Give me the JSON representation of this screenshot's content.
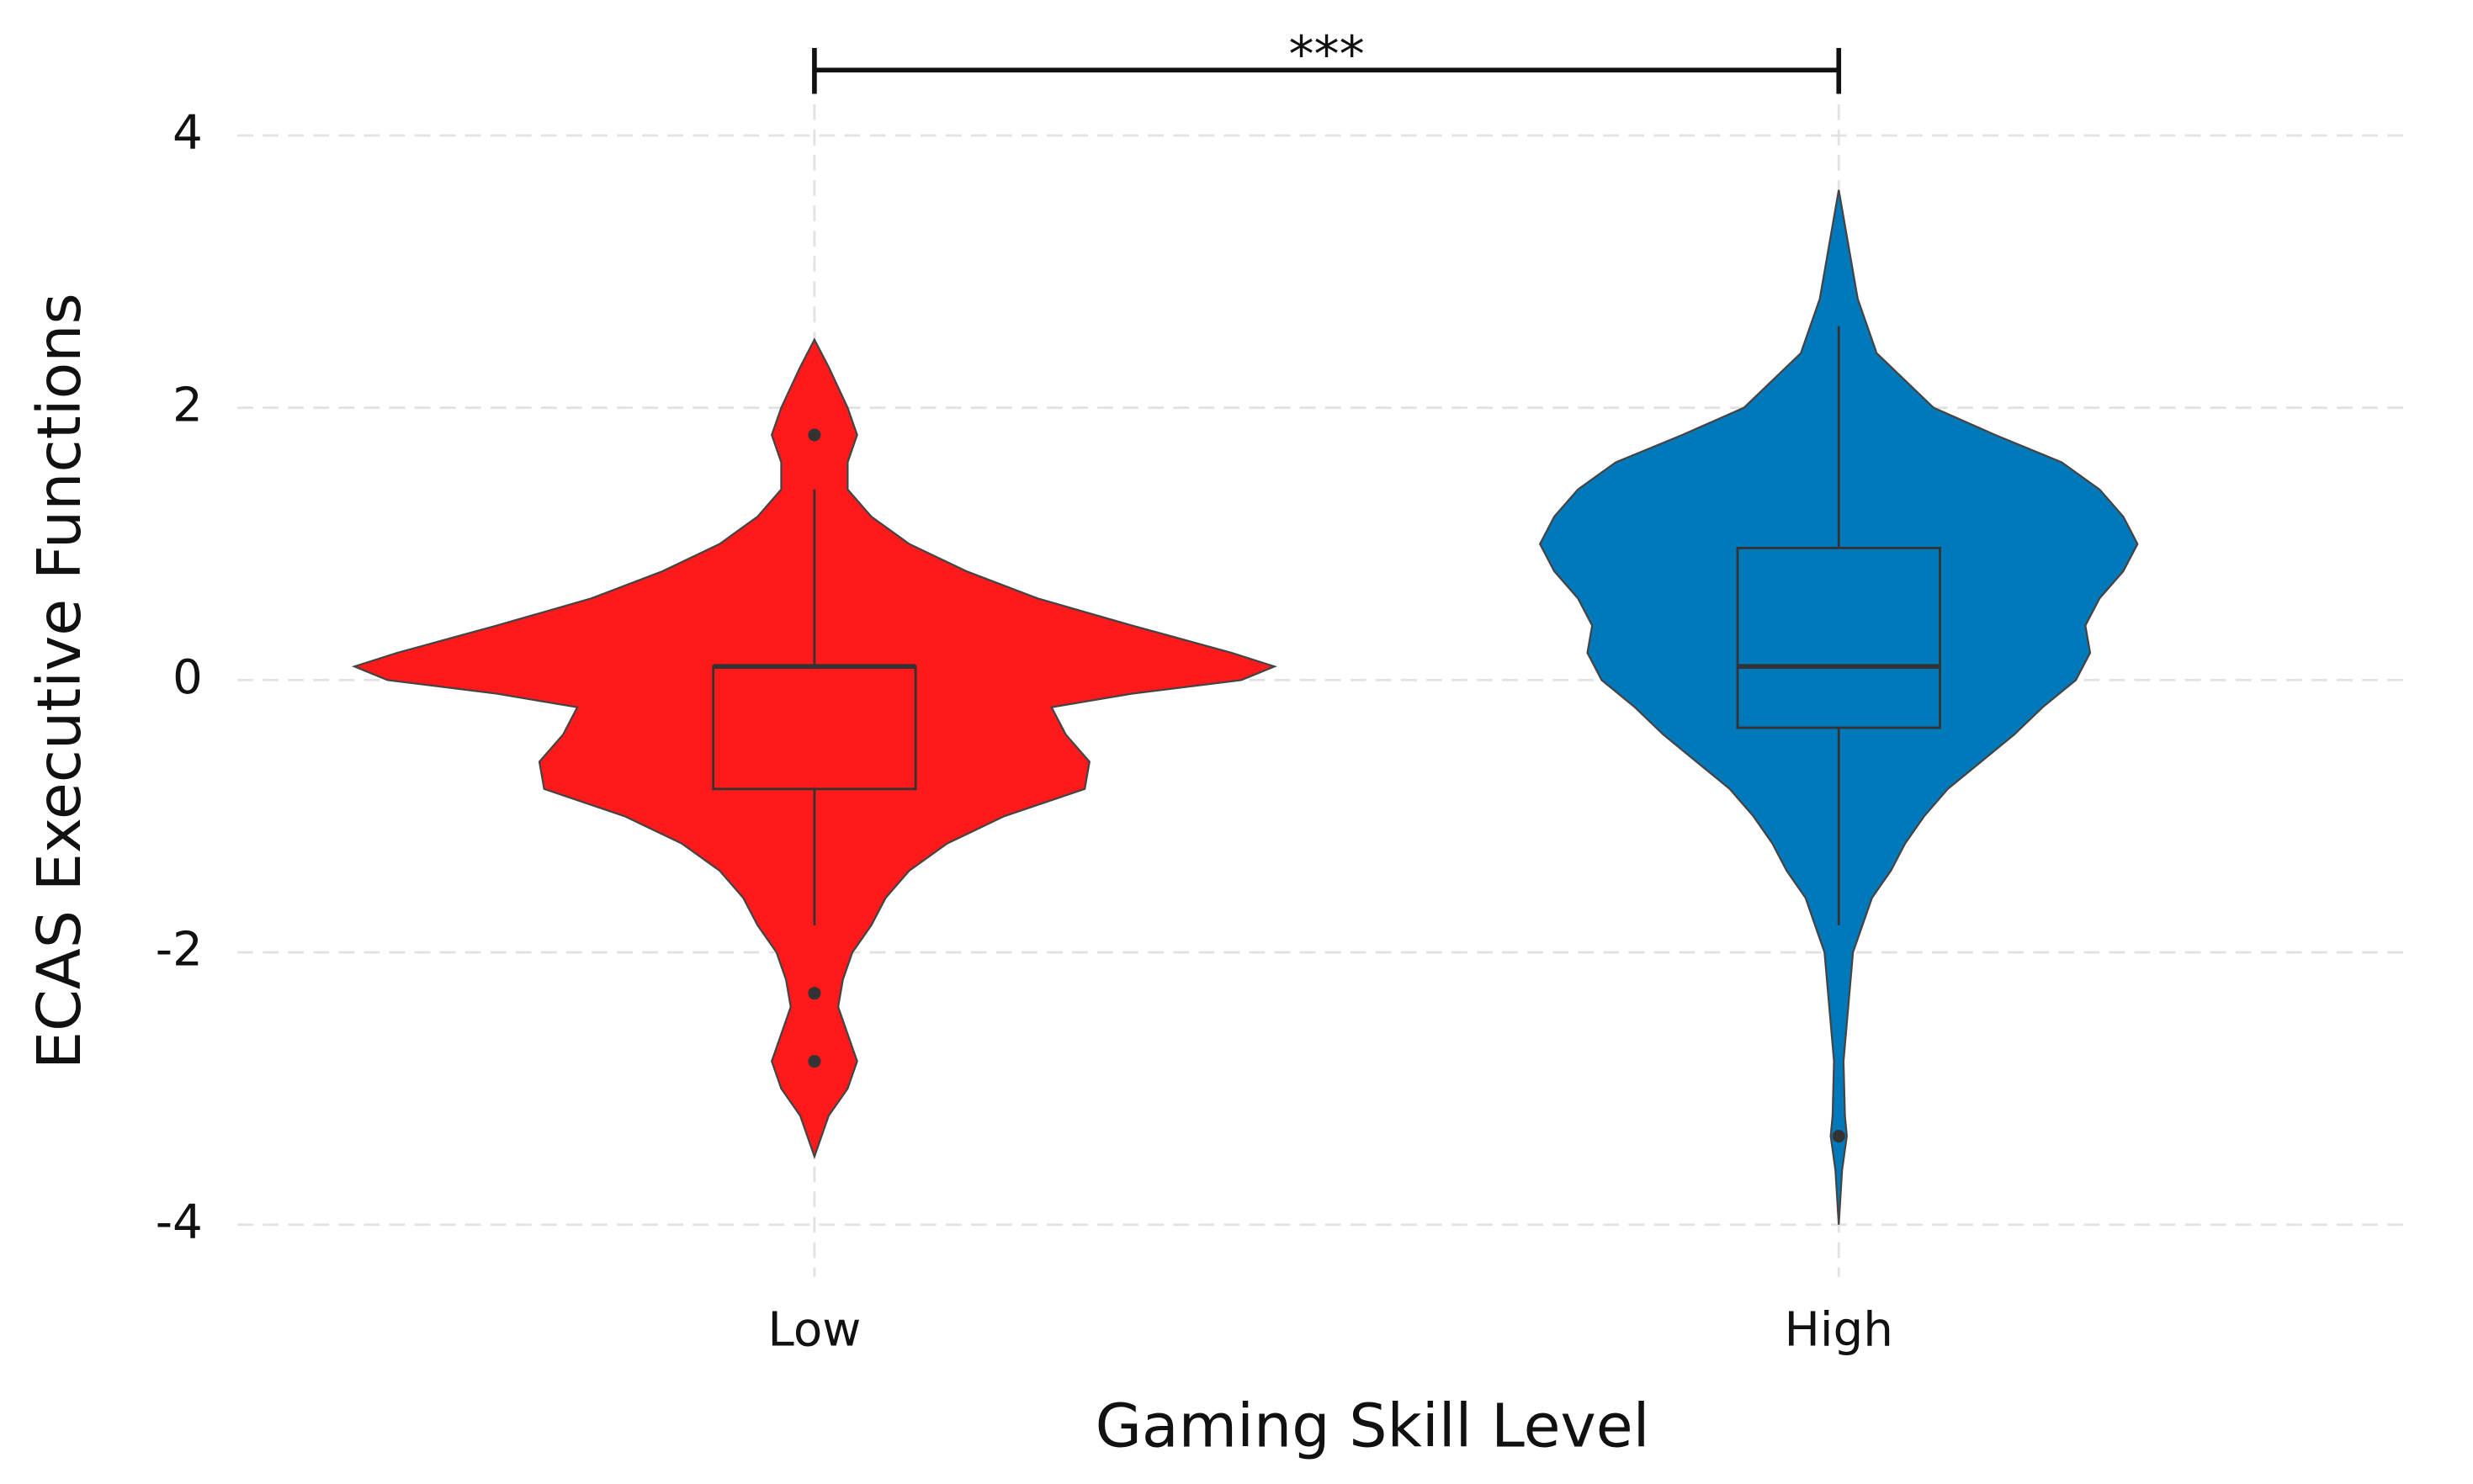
{
  "chart_data": {
    "type": "violin",
    "x_label": "Gaming Skill Level",
    "y_label": "ECAS Executive Functions",
    "categories": [
      "Low",
      "High"
    ],
    "ylim": [
      -4.5,
      4.6
    ],
    "yticks": [
      -4,
      -2,
      0,
      2,
      4
    ],
    "grid": true,
    "series": [
      {
        "color": "#fe1a1a",
        "box": {
          "whisker_low": -1.8,
          "q1": -0.8,
          "median": 0.1,
          "q3": 0.1,
          "whisker_high": 1.4
        },
        "outliers": [
          1.8,
          -2.3,
          -2.8
        ],
        "violin_y": [
          2.5,
          2.3,
          2.0,
          1.8,
          1.6,
          1.4,
          1.2,
          1.0,
          0.8,
          0.6,
          0.4,
          0.2,
          0.1,
          0.0,
          -0.1,
          -0.2,
          -0.4,
          -0.6,
          -0.8,
          -1.0,
          -1.2,
          -1.4,
          -1.6,
          -1.8,
          -2.0,
          -2.2,
          -2.4,
          -2.6,
          -2.8,
          -3.0,
          -3.2,
          -3.5
        ],
        "density": [
          0,
          0.03,
          0.07,
          0.09,
          0.07,
          0.07,
          0.12,
          0.2,
          0.32,
          0.47,
          0.67,
          0.88,
          0.97,
          0.9,
          0.67,
          0.5,
          0.53,
          0.58,
          0.57,
          0.4,
          0.28,
          0.2,
          0.15,
          0.12,
          0.08,
          0.06,
          0.05,
          0.07,
          0.09,
          0.07,
          0.03,
          0
        ]
      },
      {
        "color": "#0079bb",
        "box": {
          "whisker_low": -1.8,
          "q1": -0.35,
          "median": 0.1,
          "q3": 0.97,
          "whisker_high": 2.6
        },
        "outliers": [
          -3.35
        ],
        "violin_y": [
          3.6,
          3.2,
          2.8,
          2.4,
          2.0,
          1.8,
          1.6,
          1.4,
          1.2,
          1.0,
          0.8,
          0.6,
          0.4,
          0.2,
          0.0,
          -0.2,
          -0.4,
          -0.6,
          -0.8,
          -1.0,
          -1.2,
          -1.4,
          -1.6,
          -1.8,
          -2.0,
          -2.4,
          -2.8,
          -3.2,
          -3.35,
          -3.6,
          -4.0
        ],
        "density": [
          0,
          0.02,
          0.04,
          0.08,
          0.2,
          0.33,
          0.47,
          0.55,
          0.6,
          0.63,
          0.6,
          0.55,
          0.52,
          0.53,
          0.5,
          0.43,
          0.37,
          0.3,
          0.23,
          0.18,
          0.14,
          0.11,
          0.07,
          0.05,
          0.03,
          0.02,
          0.01,
          0.013,
          0.017,
          0.007,
          0
        ]
      }
    ],
    "annotations": [
      {
        "text": "***",
        "y": 4.48,
        "from": 0,
        "to": 1
      }
    ]
  }
}
